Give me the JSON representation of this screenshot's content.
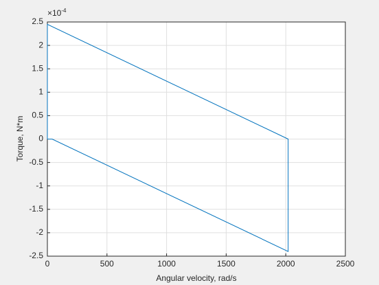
{
  "chart_data": {
    "type": "line",
    "xlabel": "Angular velocity, rad/s",
    "ylabel": "Torque, N*m",
    "y_multiplier": {
      "base": "×10",
      "exponent": "-4"
    },
    "x": [
      0,
      0,
      2020,
      2020,
      40,
      0
    ],
    "series": [
      {
        "color": "#0072bd",
        "values": [
          0,
          2.45,
          0,
          -2.4,
          0,
          0
        ]
      }
    ],
    "xlim": [
      0,
      2500
    ],
    "xticks": [
      0,
      500,
      1000,
      1500,
      2000,
      2500
    ],
    "ylim": [
      -2.5,
      2.5
    ],
    "yticks": [
      -2.5,
      -2,
      -1.5,
      -1,
      -0.5,
      0,
      0.5,
      1,
      1.5,
      2,
      2.5
    ],
    "grid": true
  }
}
